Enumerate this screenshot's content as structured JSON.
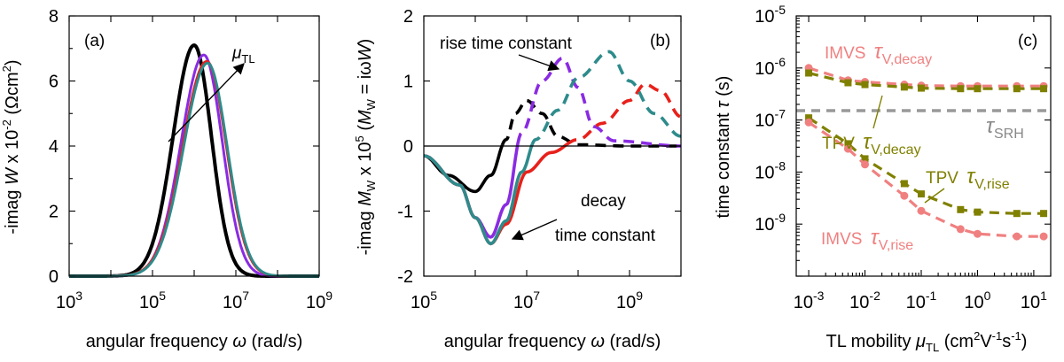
{
  "chart_data": [
    {
      "panel": "(a)",
      "type": "line",
      "xlabel": "angular frequency ω (rad/s)",
      "ylabel": "-imag W x 10^-2 (Ωcm^2)",
      "xscale": "log",
      "xlim": [
        1000,
        1000000000
      ],
      "ylim": [
        0,
        8
      ],
      "xtick_exponents": [
        3,
        5,
        7,
        9
      ],
      "yticks": [
        0,
        2,
        4,
        6,
        8
      ],
      "annotation": "μTL",
      "series": [
        {
          "color": "#000000",
          "peak_x": 1000000,
          "peak_y": 7.1,
          "width_decades": 0.65
        },
        {
          "color": "#8a2be2",
          "peak_x": 1700000,
          "peak_y": 6.8,
          "width_decades": 0.7
        },
        {
          "color": "#e8201a",
          "peak_x": 2000000,
          "peak_y": 6.6,
          "width_decades": 0.74
        },
        {
          "color": "#2e8b8b",
          "peak_x": 2100000,
          "peak_y": 6.55,
          "width_decades": 0.74
        }
      ]
    },
    {
      "panel": "(b)",
      "type": "line",
      "xlabel": "angular frequency ω (rad/s)",
      "ylabel": "-imag MW x 10^5 (MW = iωW)",
      "xscale": "log",
      "xlim": [
        100000,
        10000000000
      ],
      "ylim": [
        -2,
        2
      ],
      "xtick_exponents": [
        5,
        7,
        9
      ],
      "yticks": [
        -2,
        -1,
        0,
        1,
        2
      ],
      "annotations": [
        "rise time constant",
        "decay",
        "time constant"
      ],
      "series": [
        {
          "color": "#000000",
          "points": [
            [
              100000,
              -0.15
            ],
            [
              300000,
              -0.45
            ],
            [
              1000000,
              -0.7
            ],
            [
              2000000,
              -0.45
            ],
            [
              4000000,
              0.1
            ],
            [
              6000000,
              0.5
            ],
            [
              10000000,
              0.7
            ],
            [
              20000000,
              0.5
            ],
            [
              40000000,
              0.15
            ],
            [
              100000000,
              0.02
            ],
            [
              1000000000,
              0.0
            ],
            [
              10000000000,
              0.0
            ]
          ]
        },
        {
          "color": "#8a2be2",
          "points": [
            [
              100000,
              -0.15
            ],
            [
              500000,
              -0.6
            ],
            [
              1000000,
              -1.1
            ],
            [
              2000000,
              -1.4
            ],
            [
              4000000,
              -0.9
            ],
            [
              8000000,
              0.2
            ],
            [
              20000000,
              1.0
            ],
            [
              50000000,
              1.35
            ],
            [
              100000000,
              0.9
            ],
            [
              200000000,
              0.3
            ],
            [
              500000000,
              0.08
            ],
            [
              10000000000,
              0.0
            ]
          ]
        },
        {
          "color": "#e8201a",
          "points": [
            [
              100000,
              -0.15
            ],
            [
              500000,
              -0.6
            ],
            [
              1000000,
              -1.1
            ],
            [
              2000000,
              -1.5
            ],
            [
              4000000,
              -1.2
            ],
            [
              10000000,
              -0.4
            ],
            [
              30000000,
              -0.1
            ],
            [
              100000000,
              0.1
            ],
            [
              300000000,
              0.35
            ],
            [
              1000000000,
              0.7
            ],
            [
              2000000000,
              0.95
            ],
            [
              4000000000,
              0.85
            ],
            [
              10000000000,
              0.45
            ]
          ]
        },
        {
          "color": "#2e8b8b",
          "points": [
            [
              100000,
              -0.15
            ],
            [
              500000,
              -0.6
            ],
            [
              1000000,
              -1.1
            ],
            [
              2000000,
              -1.5
            ],
            [
              4000000,
              -1.15
            ],
            [
              8000000,
              -0.4
            ],
            [
              15000000,
              0.1
            ],
            [
              40000000,
              0.55
            ],
            [
              100000000,
              1.05
            ],
            [
              400000000,
              1.45
            ],
            [
              1000000000,
              1.0
            ],
            [
              3000000000,
              0.5
            ],
            [
              10000000000,
              0.15
            ]
          ]
        }
      ]
    },
    {
      "panel": "(c)",
      "type": "line",
      "xlabel": "TL mobility μTL (cm²V⁻¹s⁻¹)",
      "ylabel": "time constant τ (s)",
      "xscale": "log",
      "yscale": "log",
      "xlim": [
        0.0006,
        20
      ],
      "ylim": [
        1e-10,
        1e-05
      ],
      "xtick_exponents": [
        -3,
        -2,
        -1,
        0,
        1
      ],
      "ytick_exponents": [
        -9,
        -8,
        -7,
        -6,
        -5
      ],
      "reference_line": {
        "label": "τSRH",
        "value": 2e-07,
        "color": "#999999"
      },
      "series": [
        {
          "name": "IMVS τV,decay",
          "color": "#f08080",
          "marker": "circle",
          "x": [
            0.001,
            0.005,
            0.01,
            0.05,
            0.1,
            0.5,
            1,
            5,
            15
          ],
          "y": [
            1e-06,
            5.8e-07,
            5.4e-07,
            4.8e-07,
            4.6e-07,
            4.5e-07,
            4.5e-07,
            4.5e-07,
            4.5e-07
          ]
        },
        {
          "name": "TPV τV,decay",
          "color": "#808000",
          "marker": "square",
          "x": [
            0.001,
            0.005,
            0.01,
            0.05,
            0.1,
            0.5,
            1,
            5,
            15
          ],
          "y": [
            8e-07,
            5.2e-07,
            4.8e-07,
            4.3e-07,
            4.1e-07,
            4e-07,
            4e-07,
            4e-07,
            4e-07
          ]
        },
        {
          "name": "TPV τV,rise",
          "color": "#808000",
          "marker": "square",
          "x": [
            0.001,
            0.005,
            0.01,
            0.05,
            0.1,
            0.5,
            1,
            5,
            15
          ],
          "y": [
            1.1e-07,
            3.5e-08,
            1.8e-08,
            6e-09,
            3.8e-09,
            1.9e-09,
            1.7e-09,
            1.6e-09,
            1.6e-09
          ]
        },
        {
          "name": "IMVS τV,rise",
          "color": "#f08080",
          "marker": "circle",
          "x": [
            0.001,
            0.005,
            0.01,
            0.05,
            0.1,
            0.5,
            1,
            5,
            15
          ],
          "y": [
            9e-08,
            2.8e-08,
            1.4e-08,
            3.5e-09,
            1.8e-09,
            8e-10,
            6.5e-10,
            5.8e-10,
            5.8e-10
          ]
        }
      ]
    }
  ]
}
